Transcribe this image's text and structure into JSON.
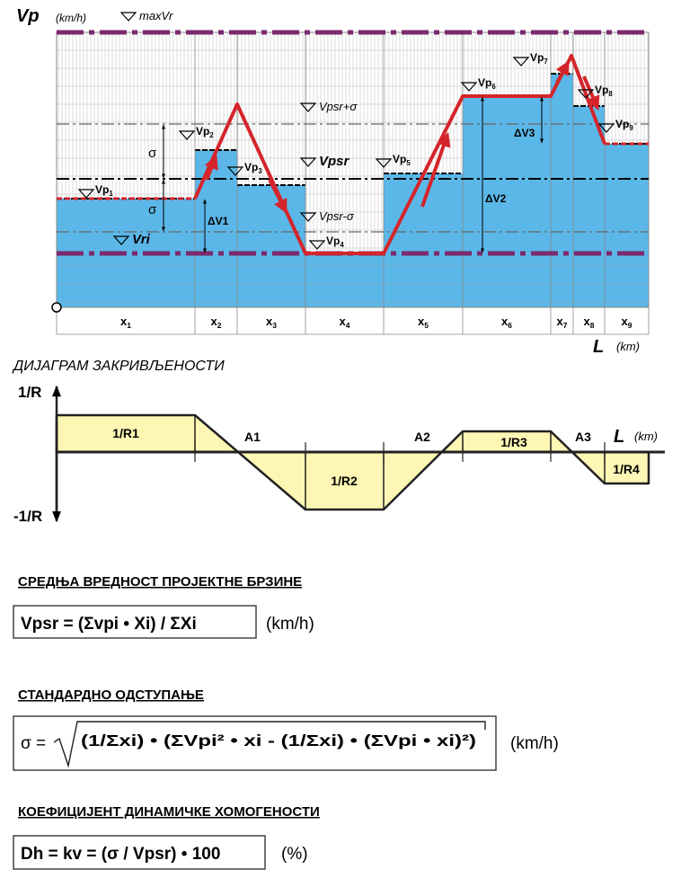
{
  "speed_diagram": {
    "y_axis_label": "Vp",
    "y_axis_unit": "(km/h)",
    "lines": [
      "maxVr",
      "Vpsr+σ",
      "Vpsr",
      "Vpsr-σ",
      "Vri"
    ],
    "sigma_labels": [
      "σ",
      "σ"
    ],
    "delta_labels": [
      "ΔV1",
      "ΔV2",
      "ΔV3"
    ],
    "speed_labels": [
      {
        "main": "Vp",
        "sub": "1"
      },
      {
        "main": "Vp",
        "sub": "2"
      },
      {
        "main": "Vp",
        "sub": "3"
      },
      {
        "main": "Vp",
        "sub": "4"
      },
      {
        "main": "Vp",
        "sub": "5"
      },
      {
        "main": "Vp",
        "sub": "6"
      },
      {
        "main": "Vp",
        "sub": "7"
      },
      {
        "main": "Vp",
        "sub": "8"
      },
      {
        "main": "Vp",
        "sub": "9"
      }
    ],
    "sections": [
      {
        "main": "x",
        "sub": "1"
      },
      {
        "main": "x",
        "sub": "2"
      },
      {
        "main": "x",
        "sub": "3"
      },
      {
        "main": "x",
        "sub": "4"
      },
      {
        "main": "x",
        "sub": "5"
      },
      {
        "main": "x",
        "sub": "6"
      },
      {
        "main": "x",
        "sub": "7"
      },
      {
        "main": "x",
        "sub": "8"
      },
      {
        "main": "x",
        "sub": "9"
      }
    ],
    "x_axis_label": "L",
    "x_axis_unit": "(km)"
  },
  "curvature_diagram": {
    "title": "ДИЈАГРАМ ЗАКРИВЉЕНОСТИ",
    "y_top": "1/R",
    "y_bottom": "-1/R",
    "areas": [
      "1/R1",
      "1/R2",
      "1/R3",
      "1/R4"
    ],
    "transitions": [
      "A1",
      "A2",
      "A3"
    ],
    "x_axis_label": "L",
    "x_axis_unit": "(km)"
  },
  "formulas": [
    {
      "heading": "СРЕДЊА ВРЕДНОСТ ПРОЈЕКТНЕ БРЗИНЕ",
      "formula": "Vpsr = (Σvpi • Xi) / ΣXi",
      "unit": "(km/h)"
    },
    {
      "heading": "СТАНДАРДНО ОДСТУПАЊЕ",
      "lhs": "σ =",
      "radicand": "(1/Σxi) • (ΣVpi² • xi - (1/Σxi) • (ΣVpi • xi)²)",
      "unit": "(km/h)"
    },
    {
      "heading": "КОЕФИЦИЈЕНТ ДИНАМИЧКЕ ХОМОГЕНОСТИ",
      "formula": "Dh = kv = (σ / Vpsr) • 100",
      "unit": "(%)"
    }
  ]
}
